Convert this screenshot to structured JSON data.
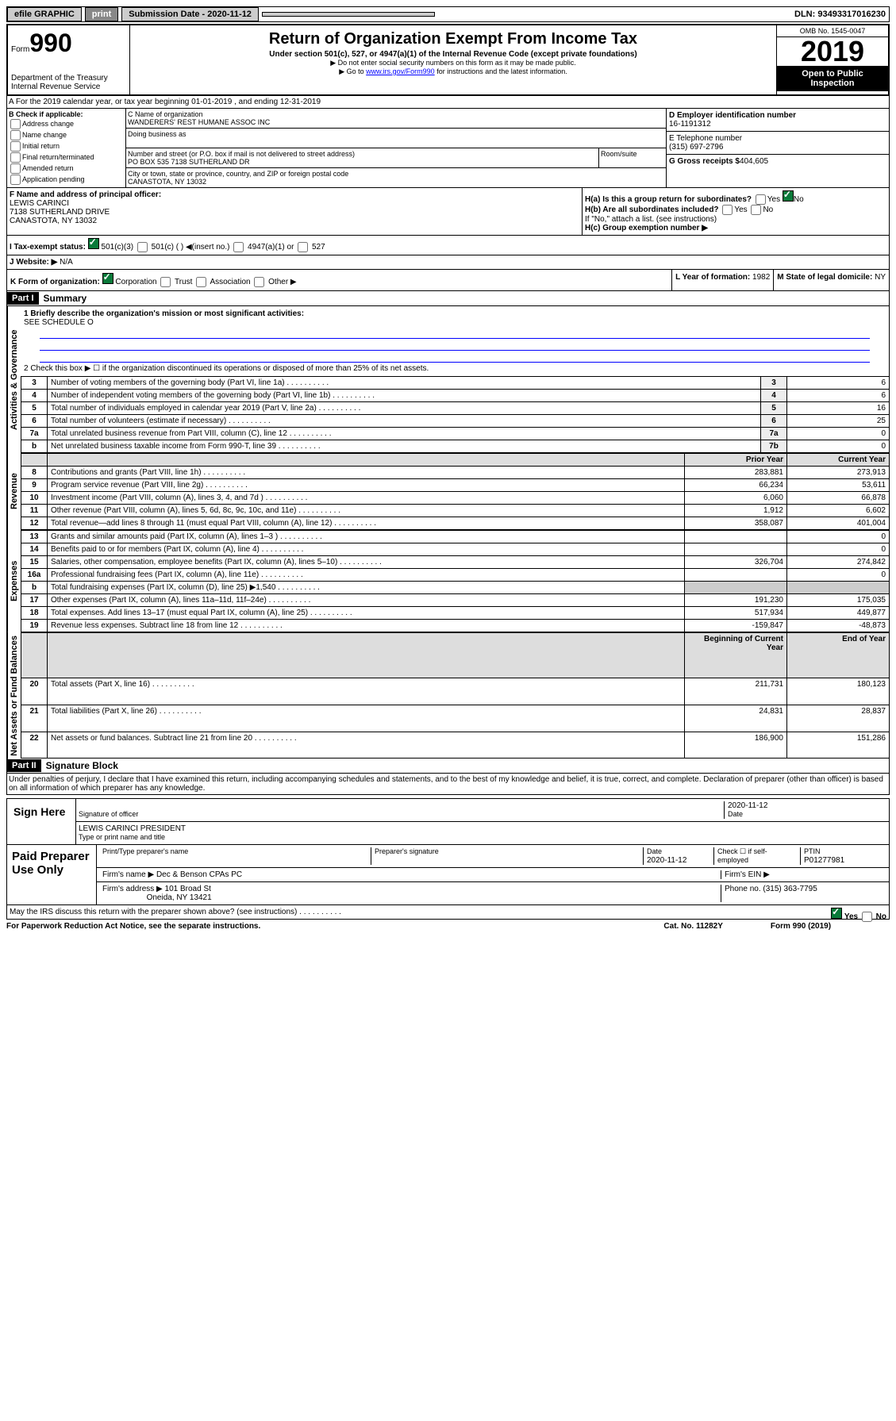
{
  "topbar": {
    "efile": "efile GRAPHIC",
    "print": "print",
    "subdate_lbl": "Submission Date - 2020-11-12",
    "dln": "DLN: 93493317016230"
  },
  "header": {
    "form_lbl": "Form",
    "form_no": "990",
    "dept": "Department of the Treasury",
    "irs": "Internal Revenue Service",
    "title": "Return of Organization Exempt From Income Tax",
    "sub": "Under section 501(c), 527, or 4947(a)(1) of the Internal Revenue Code (except private foundations)",
    "note1": "▶ Do not enter social security numbers on this form as it may be made public.",
    "note2_pre": "▶ Go to ",
    "note2_link": "www.irs.gov/Form990",
    "note2_post": " for instructions and the latest information.",
    "omb": "OMB No. 1545-0047",
    "year": "2019",
    "open": "Open to Public Inspection"
  },
  "rowA": {
    "text": "A For the 2019 calendar year, or tax year beginning 01-01-2019   , and ending 12-31-2019"
  },
  "colB": {
    "hdr": "B Check if applicable:",
    "items": [
      "Address change",
      "Name change",
      "Initial return",
      "Final return/terminated",
      "Amended return",
      "Application pending"
    ]
  },
  "boxC": {
    "lbl": "C Name of organization",
    "name": "WANDERERS' REST HUMANE ASSOC INC",
    "dba": "Doing business as",
    "addr_lbl": "Number and street (or P.O. box if mail is not delivered to street address)",
    "room": "Room/suite",
    "addr": "PO BOX 535 7138 SUTHERLAND DR",
    "city_lbl": "City or town, state or province, country, and ZIP or foreign postal code",
    "city": "CANASTOTA, NY  13032"
  },
  "boxD": {
    "lbl": "D Employer identification number",
    "val": "16-1191312"
  },
  "boxE": {
    "lbl": "E Telephone number",
    "val": "(315) 697-2796"
  },
  "boxG": {
    "lbl": "G Gross receipts $",
    "val": "404,605"
  },
  "boxF": {
    "lbl": "F  Name and address of principal officer:",
    "name": "LEWIS CARINCI",
    "addr": "7138 SUTHERLAND DRIVE",
    "city": "CANASTOTA, NY  13032"
  },
  "boxH": {
    "a": "H(a)  Is this a group return for subordinates?",
    "a_yes": "Yes",
    "a_no": "No",
    "b": "H(b)  Are all subordinates included?",
    "b_yes": "Yes",
    "b_no": "No",
    "b_note": "If \"No,\" attach a list. (see instructions)",
    "c": "H(c)  Group exemption number ▶"
  },
  "boxI": {
    "lbl": "I    Tax-exempt status:",
    "opts": [
      "501(c)(3)",
      "501(c) (  ) ◀(insert no.)",
      "4947(a)(1) or",
      "527"
    ]
  },
  "boxJ": {
    "lbl": "J    Website: ▶",
    "val": "N/A"
  },
  "boxK": {
    "lbl": "K Form of organization:",
    "opts": [
      "Corporation",
      "Trust",
      "Association",
      "Other ▶"
    ]
  },
  "boxL": {
    "lbl": "L Year of formation:",
    "val": "1982"
  },
  "boxM": {
    "lbl": "M State of legal domicile:",
    "val": "NY"
  },
  "part1": {
    "hdr": "Part I",
    "title": "Summary"
  },
  "summary": {
    "l1": "1  Briefly describe the organization's mission or most significant activities:",
    "l1_val": "SEE SCHEDULE O",
    "l2": "2    Check this box ▶ ☐  if the organization discontinued its operations or disposed of more than 25% of its net assets.",
    "lines": [
      {
        "n": "3",
        "t": "Number of voting members of the governing body (Part VI, line 1a)",
        "lbl": "3",
        "v": "6"
      },
      {
        "n": "4",
        "t": "Number of independent voting members of the governing body (Part VI, line 1b)",
        "lbl": "4",
        "v": "6"
      },
      {
        "n": "5",
        "t": "Total number of individuals employed in calendar year 2019 (Part V, line 2a)",
        "lbl": "5",
        "v": "16"
      },
      {
        "n": "6",
        "t": "Total number of volunteers (estimate if necessary)",
        "lbl": "6",
        "v": "25"
      },
      {
        "n": "7a",
        "t": "Total unrelated business revenue from Part VIII, column (C), line 12",
        "lbl": "7a",
        "v": "0"
      },
      {
        "n": "b",
        "t": "Net unrelated business taxable income from Form 990-T, line 39",
        "lbl": "7b",
        "v": "0"
      }
    ],
    "col_prior": "Prior Year",
    "col_curr": "Current Year",
    "rev": [
      {
        "n": "8",
        "t": "Contributions and grants (Part VIII, line 1h)",
        "p": "283,881",
        "c": "273,913"
      },
      {
        "n": "9",
        "t": "Program service revenue (Part VIII, line 2g)",
        "p": "66,234",
        "c": "53,611"
      },
      {
        "n": "10",
        "t": "Investment income (Part VIII, column (A), lines 3, 4, and 7d )",
        "p": "6,060",
        "c": "66,878"
      },
      {
        "n": "11",
        "t": "Other revenue (Part VIII, column (A), lines 5, 6d, 8c, 9c, 10c, and 11e)",
        "p": "1,912",
        "c": "6,602"
      },
      {
        "n": "12",
        "t": "Total revenue—add lines 8 through 11 (must equal Part VIII, column (A), line 12)",
        "p": "358,087",
        "c": "401,004"
      }
    ],
    "exp": [
      {
        "n": "13",
        "t": "Grants and similar amounts paid (Part IX, column (A), lines 1–3 )",
        "p": "",
        "c": "0"
      },
      {
        "n": "14",
        "t": "Benefits paid to or for members (Part IX, column (A), line 4)",
        "p": "",
        "c": "0"
      },
      {
        "n": "15",
        "t": "Salaries, other compensation, employee benefits (Part IX, column (A), lines 5–10)",
        "p": "326,704",
        "c": "274,842"
      },
      {
        "n": "16a",
        "t": "Professional fundraising fees (Part IX, column (A), line 11e)",
        "p": "",
        "c": "0"
      },
      {
        "n": "b",
        "t": "Total fundraising expenses (Part IX, column (D), line 25) ▶1,540",
        "p": "—",
        "c": "—"
      },
      {
        "n": "17",
        "t": "Other expenses (Part IX, column (A), lines 11a–11d, 11f–24e)",
        "p": "191,230",
        "c": "175,035"
      },
      {
        "n": "18",
        "t": "Total expenses. Add lines 13–17 (must equal Part IX, column (A), line 25)",
        "p": "517,934",
        "c": "449,877"
      },
      {
        "n": "19",
        "t": "Revenue less expenses. Subtract line 18 from line 12",
        "p": "-159,847",
        "c": "-48,873"
      }
    ],
    "col_beg": "Beginning of Current Year",
    "col_end": "End of Year",
    "net": [
      {
        "n": "20",
        "t": "Total assets (Part X, line 16)",
        "p": "211,731",
        "c": "180,123"
      },
      {
        "n": "21",
        "t": "Total liabilities (Part X, line 26)",
        "p": "24,831",
        "c": "28,837"
      },
      {
        "n": "22",
        "t": "Net assets or fund balances. Subtract line 21 from line 20",
        "p": "186,900",
        "c": "151,286"
      }
    ],
    "vlabels": {
      "gov": "Activities & Governance",
      "rev": "Revenue",
      "exp": "Expenses",
      "net": "Net Assets or Fund Balances"
    }
  },
  "part2": {
    "hdr": "Part II",
    "title": "Signature Block",
    "decl": "Under penalties of perjury, I declare that I have examined this return, including accompanying schedules and statements, and to the best of my knowledge and belief, it is true, correct, and complete. Declaration of preparer (other than officer) is based on all information of which preparer has any knowledge."
  },
  "sign": {
    "here": "Sign Here",
    "sig_lbl": "Signature of officer",
    "date": "2020-11-12",
    "date_lbl": "Date",
    "name": "LEWIS CARINCI  PRESIDENT",
    "name_lbl": "Type or print name and title"
  },
  "paid": {
    "hdr": "Paid Preparer Use Only",
    "print_lbl": "Print/Type preparer's name",
    "sig_lbl": "Preparer's signature",
    "date_lbl": "Date",
    "date": "2020-11-12",
    "check_lbl": "Check ☐ if self-employed",
    "ptin_lbl": "PTIN",
    "ptin": "P01277981",
    "firm_lbl": "Firm's name   ▶",
    "firm": "Dec & Benson CPAs PC",
    "ein_lbl": "Firm's EIN ▶",
    "addr_lbl": "Firm's address ▶",
    "addr": "101 Broad St",
    "city": "Oneida, NY  13421",
    "phone_lbl": "Phone no.",
    "phone": "(315) 363-7795"
  },
  "footer": {
    "q": "May the IRS discuss this return with the preparer shown above? (see instructions)",
    "yes": "Yes",
    "no": "No",
    "pra": "For Paperwork Reduction Act Notice, see the separate instructions.",
    "cat": "Cat. No. 11282Y",
    "form": "Form 990 (2019)"
  }
}
